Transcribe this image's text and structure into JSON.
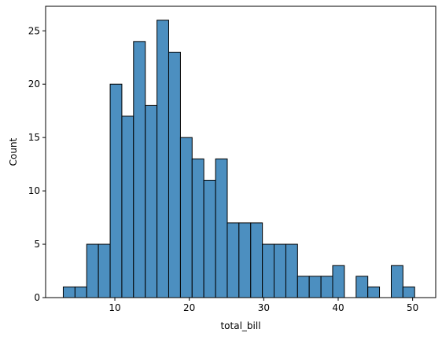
{
  "chart_data": {
    "type": "bar",
    "subtype": "histogram",
    "xlabel": "total_bill",
    "ylabel": "Count",
    "xlim": [
      0.7,
      53.1
    ],
    "ylim": [
      0,
      27.3
    ],
    "x_ticks": [
      10,
      20,
      30,
      40,
      50
    ],
    "y_ticks": [
      0,
      5,
      10,
      15,
      20,
      25
    ],
    "grid": false,
    "bar_color": "#4c8fc0",
    "edge_color": "#000000",
    "bins": [
      {
        "x0": 3.07,
        "x1": 4.65,
        "count": 1
      },
      {
        "x0": 4.65,
        "x1": 6.22,
        "count": 1
      },
      {
        "x0": 6.22,
        "x1": 7.79,
        "count": 5
      },
      {
        "x0": 7.79,
        "x1": 9.37,
        "count": 5
      },
      {
        "x0": 9.37,
        "x1": 10.94,
        "count": 20
      },
      {
        "x0": 10.94,
        "x1": 12.51,
        "count": 17
      },
      {
        "x0": 12.51,
        "x1": 14.09,
        "count": 24
      },
      {
        "x0": 14.09,
        "x1": 15.66,
        "count": 18
      },
      {
        "x0": 15.66,
        "x1": 17.23,
        "count": 26
      },
      {
        "x0": 17.23,
        "x1": 18.81,
        "count": 23
      },
      {
        "x0": 18.81,
        "x1": 20.38,
        "count": 15
      },
      {
        "x0": 20.38,
        "x1": 21.95,
        "count": 13
      },
      {
        "x0": 21.95,
        "x1": 23.53,
        "count": 11
      },
      {
        "x0": 23.53,
        "x1": 25.1,
        "count": 13
      },
      {
        "x0": 25.1,
        "x1": 26.67,
        "count": 7
      },
      {
        "x0": 26.67,
        "x1": 28.25,
        "count": 7
      },
      {
        "x0": 28.25,
        "x1": 29.82,
        "count": 7
      },
      {
        "x0": 29.82,
        "x1": 31.39,
        "count": 5
      },
      {
        "x0": 31.39,
        "x1": 32.97,
        "count": 5
      },
      {
        "x0": 32.97,
        "x1": 34.54,
        "count": 5
      },
      {
        "x0": 34.54,
        "x1": 36.11,
        "count": 2
      },
      {
        "x0": 36.11,
        "x1": 37.69,
        "count": 2
      },
      {
        "x0": 37.69,
        "x1": 39.26,
        "count": 2
      },
      {
        "x0": 39.26,
        "x1": 40.83,
        "count": 3
      },
      {
        "x0": 40.83,
        "x1": 42.41,
        "count": 0
      },
      {
        "x0": 42.41,
        "x1": 43.98,
        "count": 2
      },
      {
        "x0": 43.98,
        "x1": 45.55,
        "count": 1
      },
      {
        "x0": 45.55,
        "x1": 47.13,
        "count": 0
      },
      {
        "x0": 47.13,
        "x1": 48.7,
        "count": 3
      },
      {
        "x0": 48.7,
        "x1": 50.27,
        "count": 1
      }
    ]
  }
}
